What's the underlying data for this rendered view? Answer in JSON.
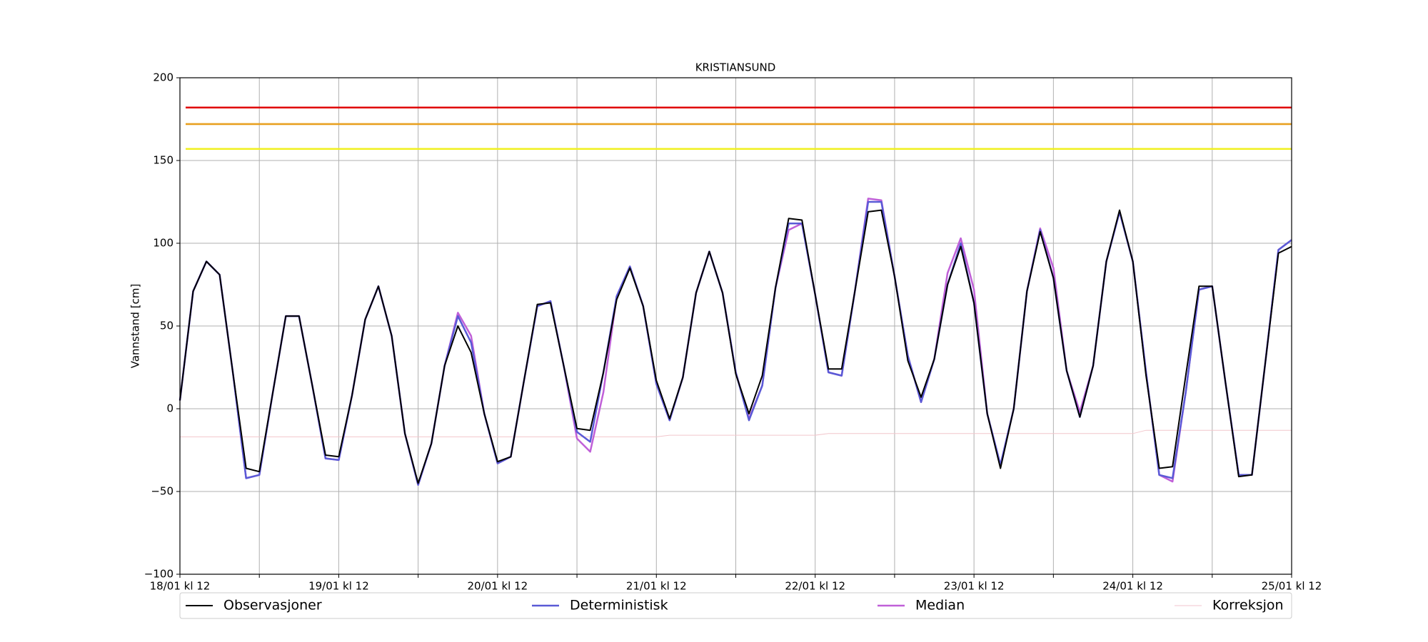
{
  "chart_data": {
    "type": "line",
    "title": "KRISTIANSUND",
    "ylabel": "Vannstand [cm]",
    "xlim": [
      0,
      168
    ],
    "xticks": [
      {
        "value": 0,
        "label": "18/01 kl 12"
      },
      {
        "value": 24,
        "label": "19/01 kl 12"
      },
      {
        "value": 48,
        "label": "20/01 kl 12"
      },
      {
        "value": 72,
        "label": "21/01 kl 12"
      },
      {
        "value": 96,
        "label": "22/01 kl 12"
      },
      {
        "value": 120,
        "label": "23/01 kl 12"
      },
      {
        "value": 144,
        "label": "24/01 kl 12"
      },
      {
        "value": 168,
        "label": "25/01 kl 12"
      }
    ],
    "xminorticks": [
      12,
      36,
      60,
      84,
      108,
      132,
      156
    ],
    "ylim": [
      -100,
      200
    ],
    "yticks": [
      {
        "value": -100,
        "label": "−100"
      },
      {
        "value": -50,
        "label": "−50"
      },
      0,
      50,
      100,
      150,
      200
    ],
    "grid": true,
    "thresholds": [
      {
        "value": 182,
        "color": "#e00000"
      },
      {
        "value": 172,
        "color": "#e8a020"
      },
      {
        "value": 157,
        "color": "#f0f020"
      }
    ],
    "x": [
      0,
      2,
      4,
      6,
      8,
      10,
      12,
      14,
      16,
      18,
      20,
      22,
      24,
      26,
      28,
      30,
      32,
      34,
      36,
      38,
      40,
      42,
      44,
      46,
      48,
      50,
      52,
      54,
      56,
      58,
      60,
      62,
      64,
      66,
      68,
      70,
      72,
      74,
      76,
      78,
      80,
      82,
      84,
      86,
      88,
      90,
      92,
      94,
      96,
      98,
      100,
      102,
      104,
      106,
      108,
      110,
      112,
      114,
      116,
      118,
      120,
      122,
      124,
      126,
      128,
      130,
      132,
      134,
      136,
      138,
      140,
      142,
      144,
      146,
      148,
      150,
      152,
      154,
      156,
      158,
      160,
      162,
      164,
      166,
      168
    ],
    "series": [
      {
        "name": "Korreksjon",
        "color": "#f2c6cc",
        "width": 1,
        "values": [
          -17,
          -17,
          -17,
          -17,
          -17,
          -17,
          -17,
          -17,
          -17,
          -17,
          -17,
          -17,
          -17,
          -17,
          -17,
          -17,
          -17,
          -17,
          -17,
          -17,
          -17,
          -17,
          -17,
          -17,
          -17,
          -17,
          -17,
          -17,
          -17,
          -17,
          -17,
          -17,
          -17,
          -17,
          -17,
          -17,
          -17,
          -16,
          -16,
          -16,
          -16,
          -16,
          -16,
          -16,
          -16,
          -16,
          -16,
          -16,
          -16,
          -15,
          -15,
          -15,
          -15,
          -15,
          -15,
          -15,
          -15,
          -15,
          -15,
          -15,
          -15,
          -15,
          -15,
          -15,
          -15,
          -15,
          -15,
          -15,
          -15,
          -15,
          -15,
          -15,
          -15,
          -13,
          -13,
          -13,
          -13,
          -13,
          -13,
          -13,
          -13,
          -13,
          -13,
          -13,
          -13
        ]
      },
      {
        "name": "Median",
        "color": "#c060d8",
        "width": 2.5,
        "values": [
          5,
          71,
          89,
          81,
          22,
          -42,
          -40,
          9,
          56,
          56,
          14,
          -30,
          -31,
          8,
          54,
          74,
          44,
          -15,
          -46,
          -21,
          26,
          58,
          44,
          -3,
          -33,
          -29,
          17,
          62,
          65,
          26,
          -18,
          -26,
          10,
          68,
          86,
          62,
          15,
          -7,
          19,
          70,
          95,
          70,
          22,
          -6,
          14,
          73,
          108,
          112,
          69,
          22,
          20,
          71,
          127,
          126,
          80,
          32,
          4,
          30,
          82,
          103,
          72,
          -3,
          -34,
          0,
          71,
          109,
          85,
          23,
          -2,
          26,
          89,
          119,
          89,
          22,
          -40,
          -44,
          10,
          72,
          74,
          16,
          -40,
          -40,
          27,
          96,
          102
        ]
      },
      {
        "name": "Deterministisk",
        "color": "#5a5ad6",
        "width": 2.5,
        "values": [
          5,
          71,
          89,
          81,
          22,
          -42,
          -40,
          9,
          56,
          56,
          14,
          -30,
          -31,
          8,
          54,
          74,
          44,
          -15,
          -46,
          -21,
          26,
          56,
          40,
          -3,
          -33,
          -29,
          17,
          62,
          65,
          26,
          -14,
          -20,
          22,
          68,
          86,
          62,
          15,
          -7,
          19,
          70,
          95,
          70,
          22,
          -7,
          14,
          73,
          112,
          112,
          69,
          22,
          20,
          71,
          125,
          125,
          80,
          32,
          4,
          30,
          75,
          100,
          64,
          -3,
          -34,
          0,
          71,
          108,
          79,
          23,
          -5,
          26,
          89,
          119,
          89,
          22,
          -40,
          -42,
          10,
          72,
          74,
          16,
          -40,
          -40,
          27,
          96,
          102
        ]
      },
      {
        "name": "Observasjoner",
        "color": "#000000",
        "width": 2,
        "values": [
          5,
          71,
          89,
          81,
          22,
          -36,
          -38,
          9,
          56,
          56,
          14,
          -28,
          -29,
          8,
          54,
          74,
          44,
          -15,
          -45,
          -21,
          26,
          50,
          34,
          -3,
          -32,
          -29,
          17,
          63,
          64,
          26,
          -12,
          -13,
          22,
          66,
          85,
          62,
          17,
          -6,
          19,
          70,
          95,
          70,
          21,
          -3,
          20,
          73,
          115,
          114,
          69,
          24,
          24,
          71,
          119,
          120,
          80,
          29,
          7,
          30,
          75,
          98,
          64,
          -3,
          -36,
          0,
          71,
          107,
          79,
          23,
          -5,
          26,
          89,
          120,
          89,
          20,
          -36,
          -35,
          20,
          74,
          74,
          16,
          -41,
          -40,
          27,
          94,
          98
        ]
      }
    ],
    "legend_order": [
      3,
      2,
      1,
      0
    ]
  }
}
